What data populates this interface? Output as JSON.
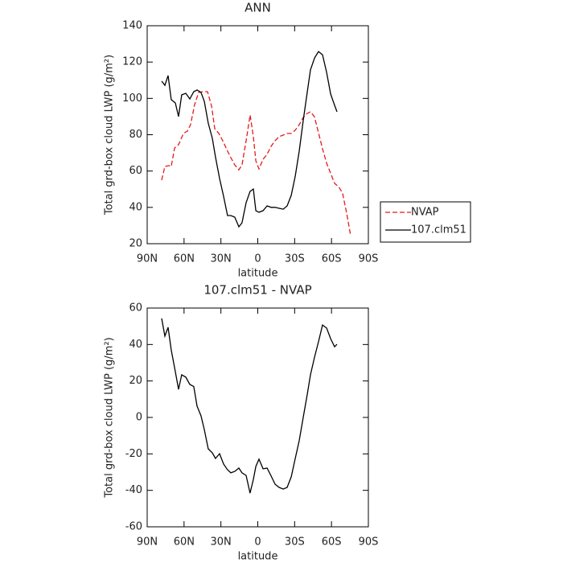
{
  "chart_data": [
    {
      "type": "line",
      "title": "ANN",
      "xlabel": "latitude",
      "ylabel": "Total grd-box cloud LWP (g/m²)",
      "xlim": [
        90,
        -90
      ],
      "xticks": [
        {
          "value": 90,
          "label": "90N"
        },
        {
          "value": 60,
          "label": "60N"
        },
        {
          "value": 30,
          "label": "30N"
        },
        0,
        {
          "value": -30,
          "label": "30S"
        },
        {
          "value": -60,
          "label": "60S"
        },
        {
          "value": -90,
          "label": "90S"
        }
      ],
      "ylim": [
        20,
        140
      ],
      "yticks": [
        20,
        40,
        60,
        80,
        100,
        120,
        140
      ],
      "legend": "right",
      "series": [
        {
          "name": "NVAP",
          "color": "#e41a1c",
          "dashed": true,
          "x": [
            78.2,
            75.6,
            72.3,
            70.4,
            67.7,
            64.5,
            60.5,
            57.3,
            54.7,
            51.4,
            48.1,
            44.8,
            40.9,
            37.6,
            35.0,
            31.7,
            28.5,
            25.2,
            21.9,
            18.7,
            15.4,
            12.8,
            9.5,
            6.2,
            3.6,
            1.6,
            -1.0,
            -4.3,
            -7.5,
            -10.8,
            -14.1,
            -17.3,
            -20.6,
            -23.9,
            -27.2,
            -30.4,
            -33.7,
            -37.0,
            -40.2,
            -42.9,
            -46.1,
            -49.4,
            -52.7,
            -56.0,
            -59.2,
            -62.5,
            -65.8,
            -69.0,
            -72.3,
            -75.6
          ],
          "values": [
            55,
            62.5,
            63,
            62.5,
            72.7,
            74.5,
            80.7,
            82,
            85.5,
            96.6,
            103.3,
            103.7,
            103.7,
            95.7,
            83.3,
            80.7,
            76.7,
            71.8,
            67.4,
            63.4,
            60.7,
            63.4,
            76.7,
            90.9,
            78.9,
            65.6,
            61.2,
            66.5,
            69.2,
            73.6,
            76.7,
            78.9,
            79.8,
            80.7,
            80.7,
            82.4,
            85.5,
            89.5,
            91.7,
            92.6,
            89.9,
            81.1,
            72.3,
            64.3,
            59,
            53.2,
            51.4,
            47.9,
            36.8,
            24.4
          ]
        },
        {
          "name": "107.clm51",
          "color": "#000000",
          "dashed": false,
          "x": [
            78.2,
            75.6,
            73.0,
            70.4,
            67.1,
            64.5,
            61.9,
            58.6,
            55.3,
            52.1,
            49.4,
            46.2,
            43.5,
            40.3,
            37.0,
            34.4,
            31.1,
            27.8,
            24.6,
            21.9,
            18.7,
            15.4,
            12.8,
            9.5,
            6.3,
            3.6,
            1.6,
            -1.0,
            -4.3,
            -7.6,
            -10.9,
            -14.1,
            -17.4,
            -20.7,
            -23.9,
            -27.2,
            -30.5,
            -33.7,
            -37.0,
            -40.3,
            -42.9,
            -46.2,
            -49.4,
            -52.7,
            -56.0,
            -59.3,
            -62.5,
            -64.5
          ],
          "values": [
            109.5,
            107.2,
            112.6,
            99.3,
            97.5,
            90,
            101.9,
            102.8,
            99.7,
            103.7,
            104.6,
            103.3,
            98.4,
            86.4,
            78,
            67.8,
            55.9,
            46.1,
            35.5,
            35.5,
            34.6,
            29.3,
            31.5,
            42.6,
            48.8,
            50.1,
            38.2,
            37.3,
            38.2,
            40.8,
            40,
            40,
            39.5,
            39,
            40.8,
            46.6,
            57.2,
            70.9,
            87.8,
            103.7,
            115.7,
            122.3,
            125.8,
            124,
            114.3,
            102.4,
            96.2,
            92.6
          ]
        }
      ]
    },
    {
      "type": "line",
      "title": "107.clm51 - NVAP",
      "xlabel": "latitude",
      "ylabel": "Total grd-box cloud LWP (g/m²)",
      "xlim": [
        90,
        -90
      ],
      "xticks": [
        {
          "value": 90,
          "label": "90N"
        },
        {
          "value": 60,
          "label": "60N"
        },
        {
          "value": 30,
          "label": "30N"
        },
        0,
        {
          "value": -30,
          "label": "30S"
        },
        {
          "value": -60,
          "label": "60S"
        },
        {
          "value": -90,
          "label": "90S"
        }
      ],
      "ylim": [
        -60,
        60
      ],
      "yticks": [
        -60,
        -40,
        -20,
        0,
        20,
        40,
        60
      ],
      "series": [
        {
          "color": "#000000",
          "dashed": false,
          "x": [
            78.2,
            75.6,
            73.0,
            70.4,
            67.1,
            64.5,
            61.9,
            58.6,
            55.3,
            52.1,
            49.4,
            46.2,
            43.5,
            40.3,
            37.0,
            34.4,
            31.1,
            27.8,
            24.6,
            21.9,
            18.7,
            15.4,
            12.8,
            9.5,
            6.3,
            3.6,
            1.6,
            -1.0,
            -4.3,
            -7.6,
            -10.9,
            -14.1,
            -17.4,
            -20.7,
            -23.9,
            -27.2,
            -30.5,
            -33.7,
            -37.0,
            -40.3,
            -42.9,
            -46.2,
            -49.4,
            -52.7,
            -56.0,
            -59.3,
            -62.5,
            -64.5
          ],
          "values": [
            54.3,
            44.6,
            49.4,
            37,
            25.1,
            15.4,
            23.4,
            22.1,
            18.1,
            17,
            6.2,
            0.9,
            -6.6,
            -17.2,
            -19.4,
            -22.5,
            -19.9,
            -25.6,
            -28.7,
            -30.4,
            -29.6,
            -27.8,
            -30.4,
            -31.8,
            -41.5,
            -34,
            -26.9,
            -22.9,
            -28.2,
            -27.8,
            -32.2,
            -36.6,
            -38.4,
            -39.3,
            -38.4,
            -32.6,
            -22.5,
            -12.8,
            0,
            12.8,
            23.4,
            33.1,
            41.5,
            50.7,
            49,
            43.2,
            38.8,
            40.1
          ]
        }
      ]
    }
  ]
}
